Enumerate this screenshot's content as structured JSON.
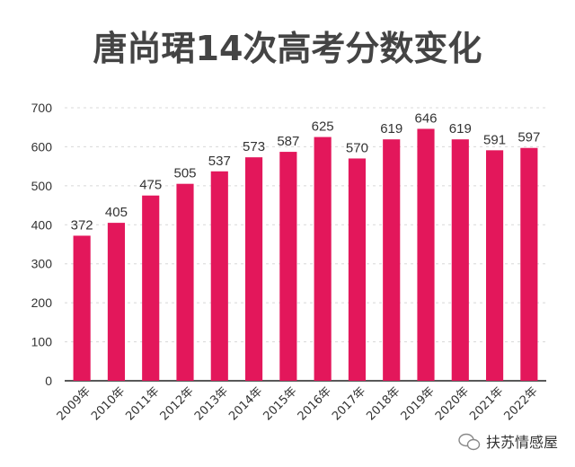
{
  "chart_data": {
    "type": "bar",
    "title": "唐尚珺14次高考分数变化",
    "categories": [
      "2009年",
      "2010年",
      "2011年",
      "2012年",
      "2013年",
      "2014年",
      "2015年",
      "2016年",
      "2017年",
      "2018年",
      "2019年",
      "2020年",
      "2021年",
      "2022年"
    ],
    "values": [
      372,
      405,
      475,
      505,
      537,
      573,
      587,
      625,
      570,
      619,
      646,
      619,
      591,
      597
    ],
    "ylim": [
      0,
      700
    ],
    "yticks": [
      0,
      100,
      200,
      300,
      400,
      500,
      600,
      700
    ],
    "grid": true,
    "bar_color": "#e3175b"
  },
  "watermark": {
    "text": "扶苏情感屋",
    "icon": "wechat-icon"
  }
}
